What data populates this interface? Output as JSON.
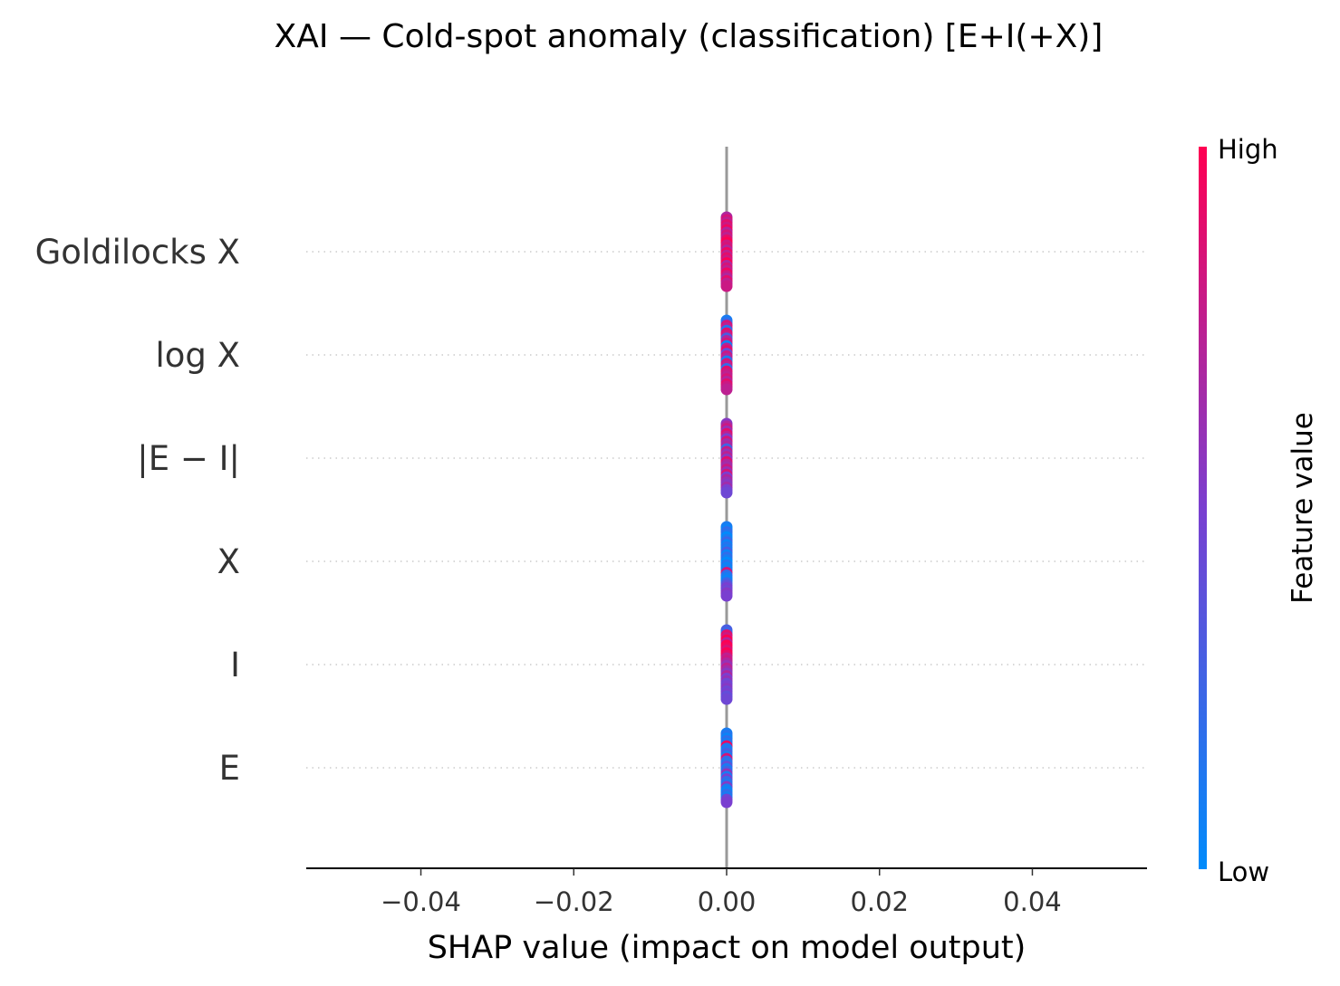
{
  "chart_data": {
    "type": "scatter",
    "subtype": "shap-beeswarm",
    "title": "XAI — Cold-spot anomaly (classification) [E+I(+X)]",
    "xlabel": "SHAP value (impact on model output)",
    "xlim": [
      -0.055,
      0.055
    ],
    "xticks": [
      -0.04,
      -0.02,
      0.0,
      0.02,
      0.04
    ],
    "xtick_labels": [
      "−0.04",
      "−0.02",
      "0.00",
      "0.02",
      "0.04"
    ],
    "features": [
      {
        "name": "Goldilocks X",
        "shap_values": [
          0,
          0,
          0,
          0,
          0,
          0,
          0,
          0,
          0,
          0,
          0,
          0,
          0,
          0,
          0,
          0,
          0,
          0,
          0,
          0,
          0,
          0,
          0,
          0,
          0,
          0,
          0,
          0
        ],
        "feature_values": [
          0.7,
          0.85,
          0.75,
          0.9,
          0.8,
          0.95,
          0.7,
          0.85,
          0.75,
          0.9,
          1.0,
          0.8,
          0.85,
          0.7,
          0.95,
          0.75,
          0.9,
          0.8,
          1.0,
          0.7,
          0.85,
          0.75,
          0.95,
          0.8,
          0.7,
          0.9,
          0.75,
          0.8
        ]
      },
      {
        "name": "log X",
        "shap_values": [
          0,
          0,
          0,
          0,
          0,
          0,
          0,
          0,
          0,
          0,
          0,
          0,
          0,
          0,
          0,
          0,
          0,
          0,
          0,
          0,
          0,
          0,
          0,
          0,
          0,
          0,
          0,
          0
        ],
        "feature_values": [
          0.1,
          0.2,
          0.85,
          0.75,
          0.15,
          0.9,
          0.8,
          0.3,
          0.7,
          0.85,
          0.05,
          0.75,
          0.9,
          0.4,
          0.8,
          0.7,
          0.1,
          0.85,
          0.75,
          0.2,
          0.9,
          0.8,
          0.75,
          0.85,
          0.7,
          0.9,
          0.8,
          0.75
        ]
      },
      {
        "name": "|E − I|",
        "shap_values": [
          0,
          0,
          0,
          0,
          0,
          0,
          0,
          0,
          0,
          0,
          0,
          0,
          0,
          0,
          0,
          0,
          0,
          0,
          0,
          0,
          0,
          0,
          0,
          0,
          0,
          0,
          0,
          0
        ],
        "feature_values": [
          0.55,
          0.7,
          0.8,
          0.6,
          0.9,
          0.75,
          0.5,
          0.85,
          0.65,
          0.7,
          0.25,
          0.8,
          0.6,
          0.75,
          0.55,
          0.9,
          0.7,
          0.65,
          0.8,
          0.6,
          0.85,
          0.5,
          0.7,
          0.6,
          0.55,
          0.65,
          0.5,
          0.45
        ]
      },
      {
        "name": "X",
        "shap_values": [
          0,
          0,
          0,
          0,
          0,
          0,
          0,
          0,
          0,
          0,
          0,
          0,
          0,
          0,
          0,
          0,
          0,
          0,
          0,
          0,
          0,
          0,
          0,
          0,
          0,
          0,
          0,
          0
        ],
        "feature_values": [
          0.1,
          0.05,
          0.2,
          0.15,
          0.0,
          0.1,
          0.25,
          0.05,
          0.15,
          0.1,
          0.3,
          0.05,
          0.2,
          0.1,
          0.0,
          0.15,
          0.05,
          0.1,
          0.85,
          0.2,
          0.1,
          0.05,
          0.25,
          0.4,
          0.5,
          0.45,
          0.55,
          0.5
        ]
      },
      {
        "name": "I",
        "shap_values": [
          0,
          0,
          0,
          0,
          0,
          0,
          0,
          0,
          0,
          0,
          0,
          0,
          0,
          0,
          0,
          0,
          0,
          0,
          0,
          0,
          0,
          0,
          0,
          0,
          0,
          0,
          0,
          0
        ],
        "feature_values": [
          0.3,
          0.25,
          0.9,
          0.8,
          1.0,
          0.7,
          1.0,
          0.95,
          0.85,
          1.0,
          0.9,
          0.75,
          0.8,
          0.7,
          0.6,
          0.75,
          0.65,
          0.55,
          0.7,
          0.5,
          0.6,
          0.45,
          0.5,
          0.55,
          0.45,
          0.5,
          0.4,
          0.45
        ]
      },
      {
        "name": "E",
        "shap_values": [
          0,
          0,
          0,
          0,
          0,
          0,
          0,
          0,
          0,
          0,
          0,
          0,
          0,
          0,
          0,
          0,
          0,
          0,
          0,
          0,
          0,
          0,
          0,
          0,
          0,
          0,
          0,
          0
        ],
        "feature_values": [
          0.1,
          0.15,
          0.05,
          0.2,
          0.1,
          0.95,
          0.1,
          0.15,
          0.3,
          0.1,
          0.85,
          0.2,
          0.15,
          0.4,
          0.1,
          0.25,
          0.6,
          0.1,
          0.5,
          0.2,
          0.15,
          0.55,
          0.1,
          0.05,
          0.2,
          0.1,
          0.45,
          0.5
        ]
      }
    ],
    "colorbar": {
      "title": "Feature value",
      "high_label": "High",
      "low_label": "Low",
      "low_color": "#008bfb",
      "high_color": "#ff0052"
    },
    "zero_line_color": "#999999",
    "grid": "dotted horizontal row guides",
    "legend": "colorbar right"
  }
}
